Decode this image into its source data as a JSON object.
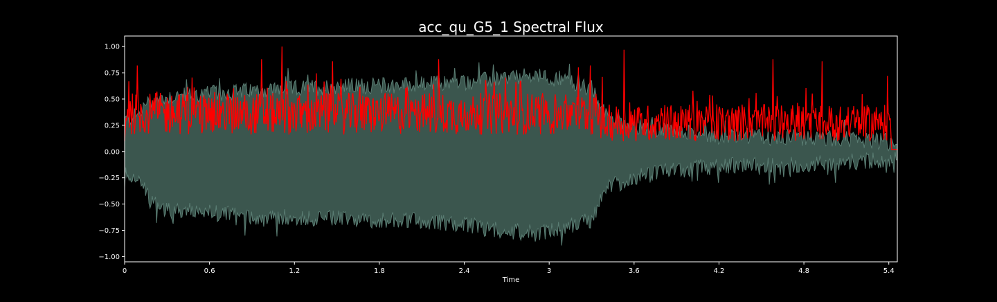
{
  "chart_data": {
    "type": "area",
    "title": "acc_qu_G5_1 Spectral Flux",
    "xlabel": "Time",
    "ylabel": "",
    "xlim": [
      0,
      5.46
    ],
    "ylim": [
      -1.05,
      1.1
    ],
    "x_ticks": [
      {
        "value": 0,
        "label": "0"
      },
      {
        "value": 0.6,
        "label": "0.6"
      },
      {
        "value": 1.2,
        "label": "1.2"
      },
      {
        "value": 1.8,
        "label": "1.8"
      },
      {
        "value": 2.4,
        "label": "2.4"
      },
      {
        "value": 3.0,
        "label": "3"
      },
      {
        "value": 3.6,
        "label": "3.6"
      },
      {
        "value": 4.2,
        "label": "4.2"
      },
      {
        "value": 4.8,
        "label": "4.8"
      },
      {
        "value": 5.4,
        "label": "5.4"
      }
    ],
    "y_ticks": [
      {
        "value": 1.0,
        "label": "1.00"
      },
      {
        "value": 0.75,
        "label": "0.75"
      },
      {
        "value": 0.5,
        "label": "0.50"
      },
      {
        "value": 0.25,
        "label": "0.25"
      },
      {
        "value": 0.0,
        "label": "0.00"
      },
      {
        "value": -0.25,
        "label": "−0.25"
      },
      {
        "value": -0.5,
        "label": "−0.50"
      },
      {
        "value": -0.75,
        "label": "−0.75"
      },
      {
        "value": -1.0,
        "label": "−1.00"
      }
    ],
    "grid": false,
    "legend": "none",
    "series": [
      {
        "kind": "waveform-envelope",
        "color": "#3b564e",
        "edge_color": "#5a7d73",
        "x": [
          0,
          0.1,
          0.15,
          0.2,
          0.3,
          0.6,
          0.9,
          1.2,
          1.5,
          1.8,
          2.1,
          2.4,
          2.7,
          2.9,
          3.1,
          3.3,
          3.35,
          3.4,
          3.5,
          3.6,
          3.7,
          4.0,
          4.2,
          4.5,
          4.8,
          5.1,
          5.35,
          5.45
        ],
        "upper": [
          0.3,
          0.35,
          0.45,
          0.48,
          0.52,
          0.55,
          0.58,
          0.6,
          0.62,
          0.63,
          0.64,
          0.66,
          0.7,
          0.72,
          0.68,
          0.6,
          0.45,
          0.35,
          0.3,
          0.25,
          0.22,
          0.18,
          0.15,
          0.14,
          0.13,
          0.12,
          0.1,
          0.05
        ],
        "lower": [
          -0.2,
          -0.25,
          -0.4,
          -0.5,
          -0.55,
          -0.58,
          -0.62,
          -0.63,
          -0.64,
          -0.65,
          -0.66,
          -0.7,
          -0.75,
          -0.78,
          -0.72,
          -0.65,
          -0.5,
          -0.35,
          -0.3,
          -0.25,
          -0.22,
          -0.16,
          -0.14,
          -0.12,
          -0.12,
          -0.1,
          -0.08,
          -0.05
        ]
      },
      {
        "kind": "spectral-flux",
        "color": "#ff0000",
        "peaks": [
          {
            "x": 0.03,
            "y": 0.67
          },
          {
            "x": 0.09,
            "y": 0.82
          },
          {
            "x": 0.23,
            "y": 0.57
          },
          {
            "x": 0.49,
            "y": 0.61
          },
          {
            "x": 0.97,
            "y": 0.88
          },
          {
            "x": 1.11,
            "y": 1.0
          },
          {
            "x": 1.47,
            "y": 0.86
          },
          {
            "x": 2.22,
            "y": 0.88
          },
          {
            "x": 3.29,
            "y": 0.82
          },
          {
            "x": 3.53,
            "y": 0.97
          },
          {
            "x": 4.58,
            "y": 0.88
          },
          {
            "x": 4.93,
            "y": 0.86
          },
          {
            "x": 5.39,
            "y": 0.72
          }
        ]
      }
    ]
  }
}
